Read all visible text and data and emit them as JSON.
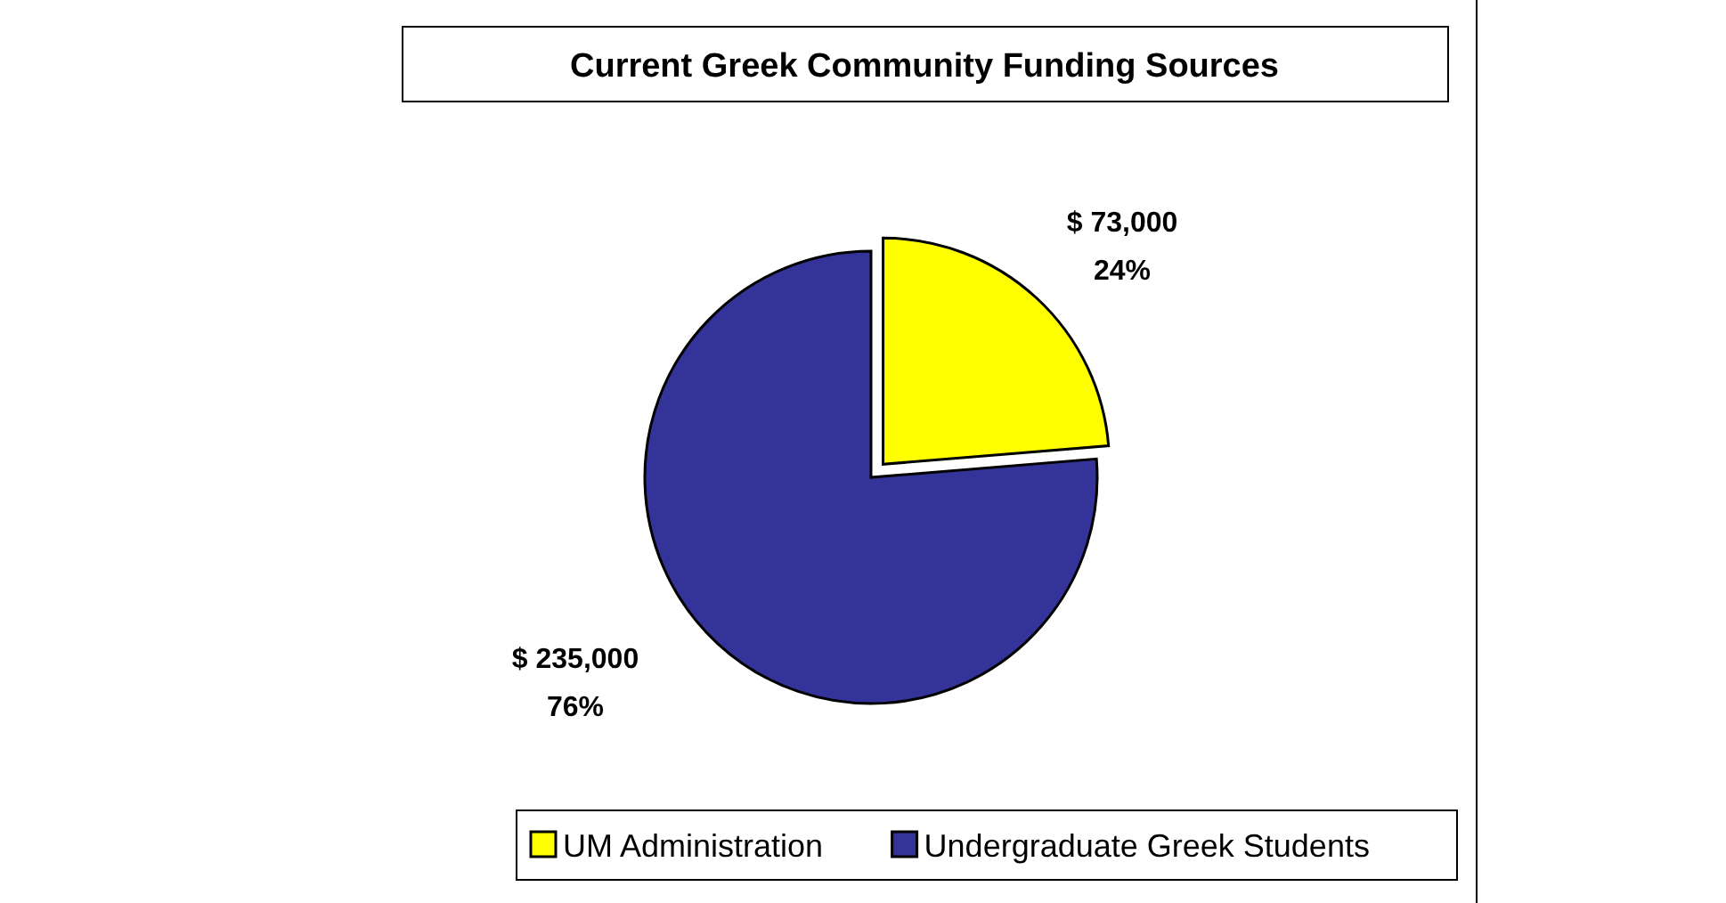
{
  "chart_data": {
    "type": "pie",
    "title": "Current Greek Community Funding Sources",
    "categories": [
      "UM Administration",
      "Undergraduate Greek Students"
    ],
    "values": [
      73000,
      235000
    ],
    "colors": [
      "#ffff00",
      "#333399"
    ],
    "value_labels": [
      "$ 73,000\n24%",
      "$ 235,000\n76%"
    ],
    "legend": "bottom"
  }
}
